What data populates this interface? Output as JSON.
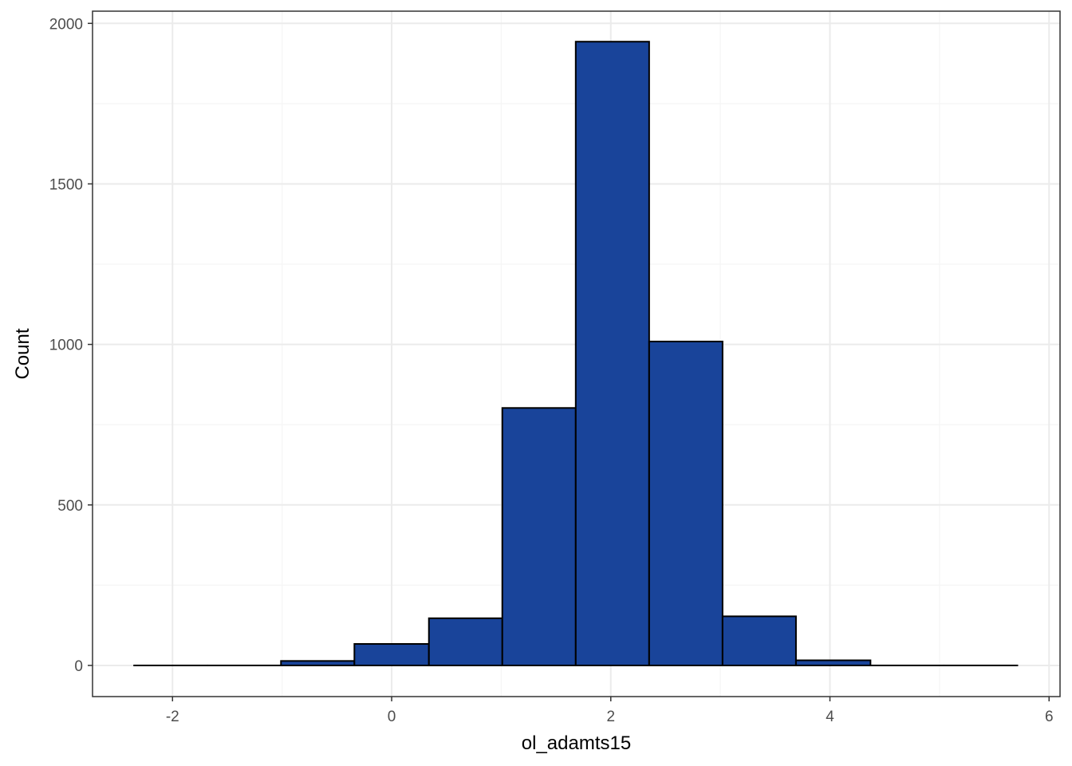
{
  "chart_data": {
    "type": "bar",
    "subtype": "histogram",
    "title": "",
    "xlabel": "ol_adamts15",
    "ylabel": "Count",
    "xlim": [
      -2.73,
      6.1
    ],
    "ylim": [
      -97,
      2038
    ],
    "x_ticks": [
      -2,
      0,
      2,
      4,
      6
    ],
    "x_tick_labels": [
      "-2",
      "0",
      "2",
      "4",
      "6"
    ],
    "y_ticks": [
      0,
      500,
      1000,
      1500,
      2000
    ],
    "y_tick_labels": [
      "0",
      "500",
      "1000",
      "1500",
      "2000"
    ],
    "y_minor_ticks": [
      250,
      750,
      1250,
      1750
    ],
    "x_minor_ticks": [
      -1,
      1,
      3,
      5
    ],
    "bins": [
      {
        "x0": -2.35,
        "x1": -1.68,
        "count": 0
      },
      {
        "x0": -1.68,
        "x1": -1.01,
        "count": 0
      },
      {
        "x0": -1.01,
        "x1": -0.34,
        "count": 14
      },
      {
        "x0": -0.34,
        "x1": 0.34,
        "count": 67
      },
      {
        "x0": 0.34,
        "x1": 1.01,
        "count": 147
      },
      {
        "x0": 1.01,
        "x1": 1.68,
        "count": 802
      },
      {
        "x0": 1.68,
        "x1": 2.35,
        "count": 1943
      },
      {
        "x0": 2.35,
        "x1": 3.02,
        "count": 1009
      },
      {
        "x0": 3.02,
        "x1": 3.69,
        "count": 153
      },
      {
        "x0": 3.69,
        "x1": 4.37,
        "count": 16
      },
      {
        "x0": 4.37,
        "x1": 5.04,
        "count": 0
      },
      {
        "x0": 5.04,
        "x1": 5.71,
        "count": 0
      }
    ],
    "grid": true,
    "legend": "none",
    "colors": {
      "bar_fill": "#19449A",
      "bar_stroke": "#000000",
      "panel_border": "#333333",
      "grid_major": "#EBEBEB",
      "grid_minor": "#F5F5F5",
      "tick_text": "#4D4D4D"
    }
  }
}
